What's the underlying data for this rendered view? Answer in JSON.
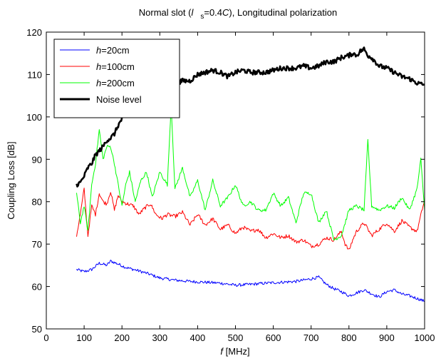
{
  "chart_data": {
    "type": "line",
    "title": {
      "prefix": "Normal slot (",
      "var": "l",
      "sub": "s",
      "mid": "=0.4",
      "c": "C",
      "suffix": "), Longitudinal polarization"
    },
    "xlabel": {
      "var": "f",
      "rest": " [MHz]"
    },
    "ylabel": "Coupling Loss [dB]",
    "xlim": [
      0,
      1000
    ],
    "ylim": [
      50,
      120
    ],
    "xticks": [
      0,
      100,
      200,
      300,
      400,
      500,
      600,
      700,
      800,
      900,
      1000
    ],
    "yticks": [
      50,
      60,
      70,
      80,
      90,
      100,
      110,
      120
    ],
    "grid": false,
    "legend_position": "top-left",
    "series": [
      {
        "name": "h=20cm",
        "name_var": "h",
        "name_rest": "=20cm",
        "color": "#0000ff",
        "x": [
          80,
          100,
          120,
          140,
          160,
          170,
          190,
          210,
          240,
          270,
          300,
          340,
          380,
          420,
          460,
          500,
          540,
          580,
          620,
          660,
          700,
          720,
          740,
          760,
          780,
          800,
          820,
          840,
          860,
          880,
          900,
          920,
          940,
          960,
          980,
          1000
        ],
        "y": [
          64,
          63.5,
          64,
          65.5,
          65,
          66,
          65.3,
          64.5,
          63.8,
          63,
          62,
          61.5,
          61.2,
          61,
          60.8,
          60.3,
          60.5,
          60.8,
          61,
          61.2,
          61.8,
          62.2,
          60.5,
          59.5,
          58.8,
          57.8,
          58.5,
          59.2,
          58.3,
          57.5,
          58.8,
          59.2,
          58.2,
          57.8,
          57.2,
          56.5
        ]
      },
      {
        "name": "h=100cm",
        "name_var": "h",
        "name_rest": "=100cm",
        "color": "#ff0000",
        "x": [
          80,
          90,
          100,
          110,
          120,
          130,
          140,
          150,
          160,
          170,
          180,
          190,
          200,
          215,
          230,
          245,
          260,
          275,
          290,
          305,
          320,
          340,
          360,
          380,
          400,
          420,
          440,
          460,
          480,
          500,
          520,
          540,
          560,
          580,
          600,
          620,
          640,
          660,
          680,
          700,
          720,
          740,
          760,
          780,
          790,
          800,
          810,
          820,
          840,
          860,
          880,
          900,
          920,
          940,
          960,
          980,
          1000
        ],
        "y": [
          72,
          77,
          83,
          72,
          79,
          77,
          82,
          80,
          79.5,
          82.5,
          78,
          81.5,
          80,
          79.5,
          79,
          77,
          78.5,
          79.5,
          77,
          76,
          77,
          76.5,
          77.5,
          74.5,
          77,
          74.5,
          76,
          73.5,
          74.5,
          72.5,
          74,
          73,
          73.5,
          71.5,
          72.5,
          71.5,
          72,
          70.5,
          71,
          69.5,
          70,
          71.5,
          71,
          73,
          70,
          68.5,
          71,
          73,
          75,
          72,
          73.5,
          75,
          73,
          75.5,
          74,
          73,
          80.5
        ]
      },
      {
        "name": "h=200cm",
        "name_var": "h",
        "name_rest": "=200cm",
        "color": "#00ff00",
        "x": [
          80,
          90,
          100,
          110,
          120,
          130,
          140,
          150,
          160,
          170,
          180,
          190,
          200,
          210,
          220,
          235,
          250,
          265,
          280,
          300,
          320,
          330,
          340,
          360,
          380,
          400,
          420,
          440,
          460,
          480,
          500,
          520,
          540,
          560,
          580,
          600,
          620,
          640,
          660,
          680,
          700,
          720,
          740,
          760,
          780,
          800,
          820,
          840,
          850,
          860,
          880,
          900,
          920,
          940,
          960,
          980,
          990,
          1000
        ],
        "y": [
          82,
          75,
          79,
          73,
          84,
          89,
          97,
          90,
          93,
          93,
          89,
          84,
          79,
          84,
          87,
          80,
          85,
          87,
          81,
          87,
          84,
          103,
          83,
          88,
          81,
          85,
          78,
          85,
          79,
          81,
          84,
          79,
          80,
          78,
          78,
          82,
          79,
          81,
          75,
          82,
          82,
          75,
          78,
          71,
          72,
          78,
          79,
          78,
          94.5,
          79,
          78,
          79,
          78.5,
          81,
          78,
          83,
          90,
          78
        ]
      },
      {
        "name": "Noise level",
        "color": "#000000",
        "x": [
          80,
          90,
          100,
          110,
          120,
          130,
          140,
          150,
          160,
          170,
          180,
          190,
          200,
          210,
          220,
          230,
          240,
          250,
          260,
          270,
          280,
          290,
          300,
          320,
          340,
          360,
          380,
          400,
          420,
          440,
          460,
          480,
          500,
          520,
          540,
          560,
          580,
          600,
          620,
          640,
          660,
          680,
          700,
          720,
          740,
          760,
          780,
          800,
          810,
          820,
          830,
          840,
          850,
          860,
          880,
          900,
          920,
          940,
          960,
          980,
          1000
        ],
        "y": [
          84,
          84.5,
          86,
          88,
          89,
          91,
          92,
          93,
          94.5,
          95,
          96,
          98,
          99.5,
          100.5,
          101.5,
          103,
          104.5,
          105.5,
          106,
          107.5,
          106.5,
          107,
          107,
          107.5,
          108,
          108.5,
          108.5,
          110,
          110.5,
          111,
          110.5,
          109.5,
          110.5,
          111,
          110.5,
          110.5,
          110.5,
          111,
          111.5,
          111.5,
          111.5,
          112,
          111.5,
          112,
          113,
          113,
          114,
          114.5,
          115,
          114.5,
          115.5,
          116,
          114.5,
          114,
          112,
          111.5,
          110.5,
          109.5,
          109,
          108,
          107.5
        ]
      }
    ]
  }
}
